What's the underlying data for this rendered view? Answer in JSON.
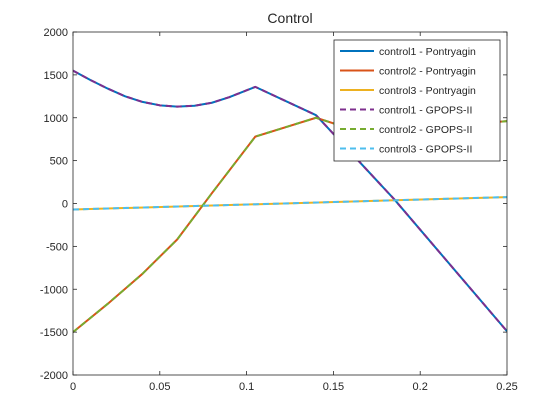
{
  "chart_data": {
    "type": "line",
    "title": "Control",
    "xlabel": "",
    "ylabel": "",
    "xlim": [
      0,
      0.25
    ],
    "ylim": [
      -2000,
      2000
    ],
    "xticks": [
      0,
      0.05,
      0.1,
      0.15,
      0.2,
      0.25
    ],
    "xtick_labels": [
      "0",
      "0.05",
      "0.1",
      "0.15",
      "0.2",
      "0.25"
    ],
    "yticks": [
      -2000,
      -1500,
      -1000,
      -500,
      0,
      500,
      1000,
      1500,
      2000
    ],
    "ytick_labels": [
      "-2000",
      "-1500",
      "-1000",
      "-500",
      "0",
      "500",
      "1000",
      "1500",
      "2000"
    ],
    "grid": false,
    "legend_position": "top-right",
    "series": [
      {
        "name": "control1 - Pontryagin",
        "color": "#0072BD",
        "style": "solid",
        "x": [
          0,
          0.01,
          0.02,
          0.03,
          0.04,
          0.05,
          0.06,
          0.07,
          0.08,
          0.09,
          0.1,
          0.105,
          0.14,
          0.185,
          0.25
        ],
        "y": [
          1550,
          1440,
          1340,
          1250,
          1185,
          1145,
          1130,
          1140,
          1175,
          1240,
          1320,
          1360,
          1030,
          50,
          -1490
        ]
      },
      {
        "name": "control2 - Pontryagin",
        "color": "#D95319",
        "style": "solid",
        "x": [
          0,
          0.02,
          0.04,
          0.06,
          0.08,
          0.105,
          0.14,
          0.16,
          0.2,
          0.25
        ],
        "y": [
          -1500,
          -1170,
          -820,
          -420,
          120,
          780,
          1000,
          870,
          880,
          960
        ]
      },
      {
        "name": "control3 - Pontryagin",
        "color": "#EDB120",
        "style": "solid",
        "x": [
          0,
          0.25
        ],
        "y": [
          -70,
          75
        ]
      },
      {
        "name": "control1 - GPOPS-II",
        "color": "#7E2F8E",
        "style": "dashed",
        "x": [
          0,
          0.01,
          0.02,
          0.03,
          0.04,
          0.05,
          0.06,
          0.07,
          0.08,
          0.09,
          0.1,
          0.105,
          0.14,
          0.185,
          0.25
        ],
        "y": [
          1550,
          1440,
          1340,
          1250,
          1185,
          1145,
          1130,
          1140,
          1175,
          1240,
          1320,
          1360,
          1030,
          50,
          -1490
        ]
      },
      {
        "name": "control2 - GPOPS-II",
        "color": "#77AC30",
        "style": "dashed",
        "x": [
          0,
          0.02,
          0.04,
          0.06,
          0.08,
          0.105,
          0.14,
          0.16,
          0.2,
          0.25
        ],
        "y": [
          -1500,
          -1170,
          -820,
          -420,
          120,
          780,
          1000,
          870,
          880,
          960
        ]
      },
      {
        "name": "control3 - GPOPS-II",
        "color": "#4DBEEE",
        "style": "dashed",
        "x": [
          0,
          0.25
        ],
        "y": [
          -70,
          75
        ]
      }
    ]
  }
}
